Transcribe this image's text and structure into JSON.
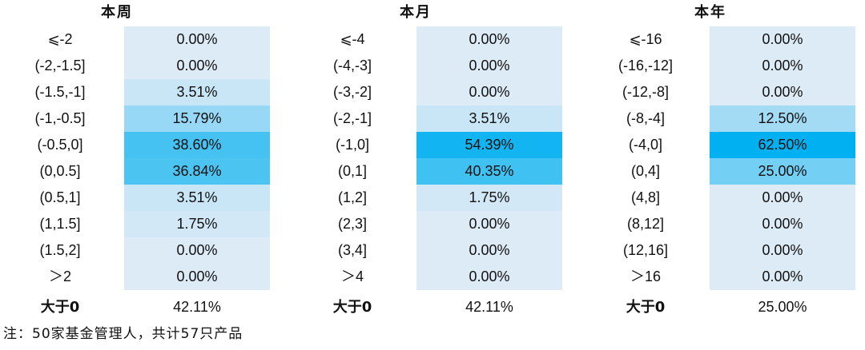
{
  "chart_data": [
    {
      "type": "table",
      "title": "本周",
      "rows": [
        {
          "range": "⩽-2",
          "value": "0.00%",
          "pct": 0.0
        },
        {
          "range": "(-2,-1.5]",
          "value": "0.00%",
          "pct": 0.0
        },
        {
          "range": "(-1.5,-1]",
          "value": "3.51%",
          "pct": 3.51
        },
        {
          "range": "(-1,-0.5]",
          "value": "15.79%",
          "pct": 15.79
        },
        {
          "range": "(-0.5,0]",
          "value": "38.60%",
          "pct": 38.6
        },
        {
          "range": "(0,0.5]",
          "value": "36.84%",
          "pct": 36.84
        },
        {
          "range": "(0.5,1]",
          "value": "3.51%",
          "pct": 3.51
        },
        {
          "range": "(1,1.5]",
          "value": "1.75%",
          "pct": 1.75
        },
        {
          "range": "(1.5,2]",
          "value": "0.00%",
          "pct": 0.0
        },
        {
          "range": "＞2",
          "value": "0.00%",
          "pct": 0.0
        }
      ],
      "summary": {
        "label": "大于0",
        "value": "42.11%"
      }
    },
    {
      "type": "table",
      "title": "本月",
      "rows": [
        {
          "range": "⩽-4",
          "value": "0.00%",
          "pct": 0.0
        },
        {
          "range": "(-4,-3]",
          "value": "0.00%",
          "pct": 0.0
        },
        {
          "range": "(-3,-2]",
          "value": "0.00%",
          "pct": 0.0
        },
        {
          "range": "(-2,-1]",
          "value": "3.51%",
          "pct": 3.51
        },
        {
          "range": "(-1,0]",
          "value": "54.39%",
          "pct": 54.39
        },
        {
          "range": "(0,1]",
          "value": "40.35%",
          "pct": 40.35
        },
        {
          "range": "(1,2]",
          "value": "1.75%",
          "pct": 1.75
        },
        {
          "range": "(2,3]",
          "value": "0.00%",
          "pct": 0.0
        },
        {
          "range": "(3,4]",
          "value": "0.00%",
          "pct": 0.0
        },
        {
          "range": "＞4",
          "value": "0.00%",
          "pct": 0.0
        }
      ],
      "summary": {
        "label": "大于0",
        "value": "42.11%"
      }
    },
    {
      "type": "table",
      "title": "本年",
      "rows": [
        {
          "range": "⩽-16",
          "value": "0.00%",
          "pct": 0.0
        },
        {
          "range": "(-16,-12]",
          "value": "0.00%",
          "pct": 0.0
        },
        {
          "range": "(-12,-8]",
          "value": "0.00%",
          "pct": 0.0
        },
        {
          "range": "(-8,-4]",
          "value": "12.50%",
          "pct": 12.5
        },
        {
          "range": "(-4,0]",
          "value": "62.50%",
          "pct": 62.5
        },
        {
          "range": "(0,4]",
          "value": "25.00%",
          "pct": 25.0
        },
        {
          "range": "(4,8]",
          "value": "0.00%",
          "pct": 0.0
        },
        {
          "range": "(8,12]",
          "value": "0.00%",
          "pct": 0.0
        },
        {
          "range": "(12,16]",
          "value": "0.00%",
          "pct": 0.0
        },
        {
          "range": "＞16",
          "value": "0.00%",
          "pct": 0.0
        }
      ],
      "summary": {
        "label": "大于0",
        "value": "25.00%"
      }
    }
  ],
  "colors": {
    "heat_low": "#ddebf7",
    "heat_high": "#00b0f0"
  },
  "note": "注：50家基金管理人，共计57只产品"
}
